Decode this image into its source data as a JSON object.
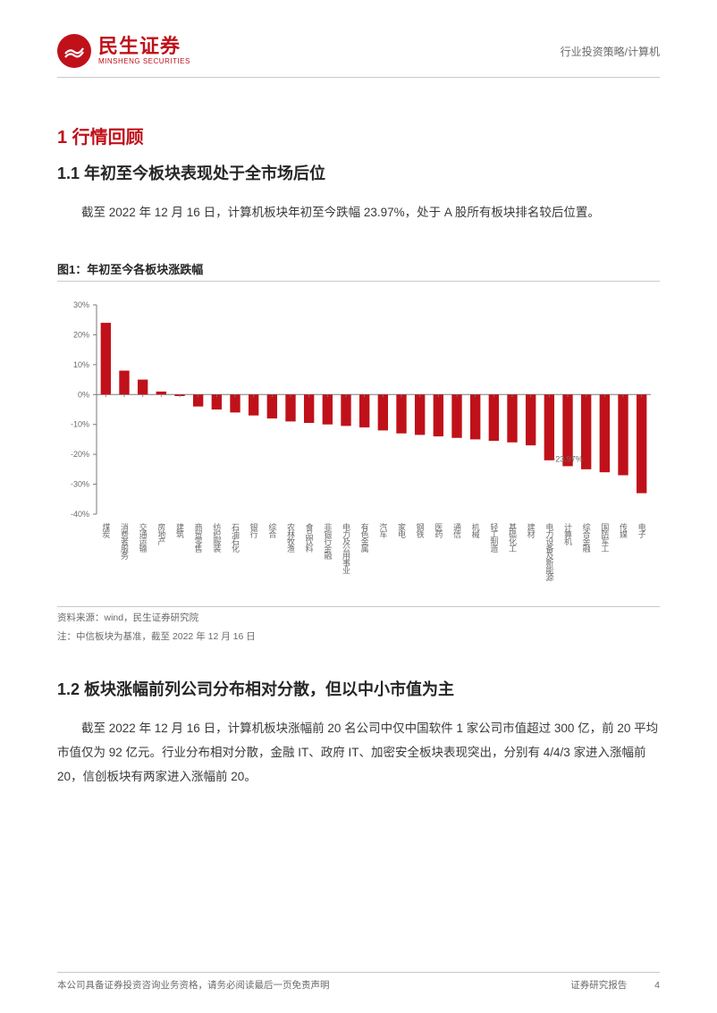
{
  "header": {
    "logo_cn": "民生证券",
    "logo_en": "MINSHENG SECURITIES",
    "right_text": "行业投资策略/计算机"
  },
  "section1": {
    "title": "1 行情回顾",
    "sub1_title": "1.1 年初至今板块表现处于全市场后位",
    "sub1_para": "截至 2022 年 12 月 16 日，计算机板块年初至今跌幅 23.97%，处于 A 股所有板块排名较后位置。",
    "fig1_title": "图1：年初至今各板块涨跌幅",
    "source_line1": "资料来源：wind，民生证券研究院",
    "source_line2": "注：中信板块为基准，截至 2022 年 12 月 16 日",
    "sub2_title": "1.2 板块涨幅前列公司分布相对分散，但以中小市值为主",
    "sub2_para": "截至 2022 年 12 月 16 日，计算机板块涨幅前 20 名公司中仅中国软件 1 家公司市值超过 300 亿，前 20 平均市值仅为 92 亿元。行业分布相对分散，金融 IT、政府 IT、加密安全板块表现突出，分别有 4/4/3 家进入涨幅前 20，信创板块有两家进入涨幅前 20。"
  },
  "chart": {
    "type": "bar",
    "y_min": -40,
    "y_max": 30,
    "y_ticks": [
      30,
      20,
      10,
      0,
      -10,
      -20,
      -30,
      -40
    ],
    "y_tick_labels": [
      "30%",
      "20%",
      "10%",
      "0%",
      "-10%",
      "-20%",
      "-30%",
      "-40%"
    ],
    "bar_color": "#c0111a",
    "axis_color": "#7a7a7a",
    "text_color": "#6a6a6a",
    "label_font_size": 9,
    "annotation": {
      "index": 25,
      "text": "-23.97%"
    },
    "categories": [
      "煤炭",
      "消费者服务",
      "交通运输",
      "房地产",
      "建筑",
      "商贸零售",
      "纺织服装",
      "石油石化",
      "银行",
      "综合",
      "农林牧渔",
      "食品饮料",
      "非银行金融",
      "电力及公用事业",
      "有色金属",
      "汽车",
      "家电",
      "钢铁",
      "医药",
      "通信",
      "机械",
      "轻工制造",
      "基础化工",
      "建材",
      "电力设备及新能源",
      "计算机",
      "综合金融",
      "国防军工",
      "传媒",
      "电子"
    ],
    "values": [
      24,
      8,
      5,
      1,
      -0.5,
      -4,
      -5,
      -6,
      -7,
      -8,
      -9,
      -9.5,
      -10,
      -10.5,
      -11,
      -12,
      -13,
      -13.5,
      -14,
      -14.5,
      -15,
      -15.5,
      -16,
      -17,
      -22,
      -23.97,
      -25,
      -26,
      -27,
      -33
    ]
  },
  "footer": {
    "left": "本公司具备证券投资咨询业务资格，请务必阅读最后一页免责声明",
    "right1": "证券研究报告",
    "right2": "4"
  }
}
